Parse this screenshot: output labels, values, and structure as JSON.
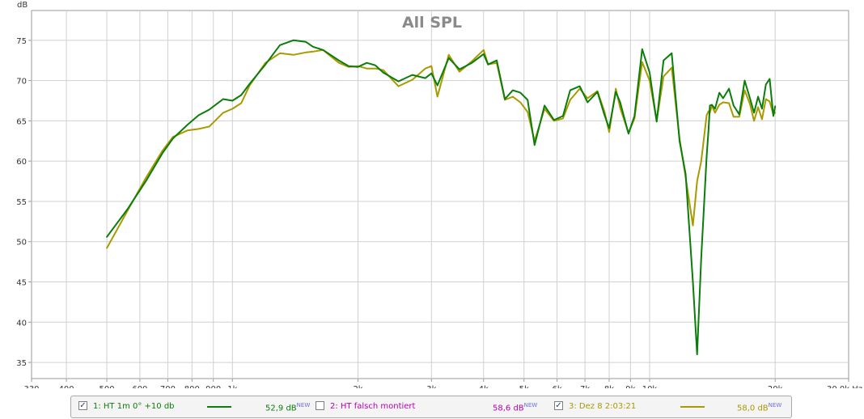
{
  "chart_data": {
    "type": "line",
    "title": "All SPL",
    "ylabel": "dB",
    "xunit": "Hz",
    "xscale": "log",
    "xlim": [
      330,
      30000
    ],
    "ylim": [
      33,
      78.7
    ],
    "x_ticks": [
      330,
      400,
      500,
      600,
      700,
      800,
      900,
      1000,
      2000,
      3000,
      4000,
      5000,
      6000,
      7000,
      8000,
      9000,
      10000,
      20000,
      30000
    ],
    "x_tick_labels": [
      "330",
      "400",
      "500",
      "600",
      "700",
      "800",
      "900",
      "1k",
      "2k",
      "3k",
      "4k",
      "5k",
      "6k",
      "7k",
      "8k",
      "9k",
      "10k",
      "20k",
      "30,0k Hz"
    ],
    "y_ticks": [
      35,
      40,
      45,
      50,
      55,
      60,
      65,
      70,
      75
    ],
    "grid": true,
    "series": [
      {
        "name": "1: HT 1m 0° +10 db",
        "color": "#0a7d0a",
        "x": [
          500,
          560,
          620,
          680,
          720,
          780,
          830,
          880,
          950,
          1000,
          1050,
          1100,
          1200,
          1300,
          1400,
          1500,
          1560,
          1650,
          1800,
          1900,
          2000,
          2100,
          2200,
          2300,
          2500,
          2700,
          2900,
          3000,
          3100,
          3300,
          3500,
          3750,
          4000,
          4100,
          4300,
          4500,
          4700,
          4900,
          5100,
          5300,
          5600,
          5900,
          6200,
          6450,
          6800,
          7100,
          7500,
          7800,
          8000,
          8300,
          8500,
          8900,
          9200,
          9600,
          10000,
          10400,
          10800,
          11300,
          11800,
          12200,
          12700,
          13000,
          13300,
          13700,
          13850,
          13950,
          14100,
          14350,
          14700,
          15000,
          15500,
          15900,
          16400,
          16900,
          17400,
          17800,
          18200,
          18600,
          19000,
          19400,
          19800,
          20000
        ],
        "y": [
          50.6,
          54.0,
          57.5,
          61.0,
          62.8,
          64.5,
          65.7,
          66.4,
          67.7,
          67.5,
          68.2,
          69.6,
          72.0,
          74.4,
          75.0,
          74.8,
          74.2,
          73.8,
          72.5,
          71.8,
          71.7,
          72.2,
          71.9,
          71.0,
          69.9,
          70.7,
          70.3,
          70.9,
          69.4,
          72.8,
          71.4,
          72.2,
          73.3,
          72.0,
          72.5,
          67.7,
          68.8,
          68.5,
          67.6,
          62.0,
          66.9,
          65.1,
          65.6,
          68.8,
          69.3,
          67.3,
          68.6,
          65.7,
          64.1,
          68.6,
          67.3,
          63.4,
          65.6,
          73.9,
          71.0,
          64.9,
          72.5,
          73.4,
          62.5,
          58.4,
          45.0,
          36.0,
          48.0,
          60.6,
          64.0,
          66.9,
          67.0,
          66.5,
          68.5,
          67.8,
          69.0,
          66.9,
          65.8,
          70.0,
          67.8,
          66.0,
          68.0,
          66.5,
          69.5,
          70.2,
          65.6,
          66.8
        ]
      },
      {
        "name": "2: HT falsch montiert",
        "color": "#b400b4",
        "x": [],
        "y": []
      },
      {
        "name": "3: Dez 8 2:03:21",
        "color": "#a89a00",
        "x": [
          500,
          560,
          620,
          680,
          720,
          780,
          830,
          880,
          950,
          1000,
          1050,
          1100,
          1200,
          1300,
          1400,
          1500,
          1560,
          1650,
          1800,
          1900,
          2000,
          2100,
          2200,
          2300,
          2500,
          2700,
          2900,
          3000,
          3100,
          3300,
          3500,
          3750,
          4000,
          4100,
          4300,
          4500,
          4700,
          4900,
          5100,
          5300,
          5600,
          5900,
          6200,
          6450,
          6800,
          7100,
          7500,
          7800,
          8000,
          8300,
          8500,
          8900,
          9200,
          9600,
          10000,
          10400,
          10800,
          11300,
          11800,
          12200,
          12700,
          13000,
          13300,
          13700,
          13850,
          13950,
          14100,
          14350,
          14700,
          15000,
          15500,
          15900,
          16400,
          16900,
          17400,
          17800,
          18200,
          18600,
          19000,
          19400,
          19800,
          20000
        ],
        "y": [
          49.2,
          53.8,
          57.9,
          61.3,
          63.0,
          63.8,
          64.0,
          64.3,
          66.0,
          66.5,
          67.2,
          69.4,
          72.2,
          73.4,
          73.2,
          73.5,
          73.6,
          73.8,
          72.2,
          71.7,
          71.8,
          71.5,
          71.5,
          71.3,
          69.3,
          70.1,
          71.5,
          71.8,
          68.0,
          73.2,
          71.1,
          72.4,
          73.8,
          72.0,
          72.2,
          67.6,
          68.0,
          67.3,
          66.1,
          62.5,
          66.5,
          65.0,
          65.3,
          67.6,
          69.0,
          67.8,
          68.7,
          66.1,
          63.6,
          69.0,
          66.6,
          63.5,
          65.3,
          72.3,
          70.0,
          65.0,
          70.5,
          71.6,
          62.8,
          58.0,
          52.0,
          57.5,
          60.0,
          65.7,
          66.2,
          66.0,
          66.9,
          66.0,
          67.0,
          67.3,
          67.2,
          65.5,
          65.5,
          68.8,
          67.1,
          65.0,
          66.7,
          65.2,
          67.7,
          67.4,
          65.8,
          66.0
        ]
      }
    ],
    "legend": [
      {
        "checked": true,
        "label": "1: HT 1m 0° +10 db",
        "value": "52,9 dB",
        "badge": "NEW",
        "text_color": "#0a7d0a",
        "line_color": "#0a7d0a",
        "has_swatch": true
      },
      {
        "checked": false,
        "label": "2: HT falsch montiert",
        "value": "58,6 dB",
        "badge": "NEW",
        "text_color": "#b400b4",
        "line_color": "#b400b4",
        "has_swatch": false
      },
      {
        "checked": true,
        "label": "3: Dez 8 2:03:21",
        "value": "58,0 dB",
        "badge": "NEW",
        "text_color": "#a89a00",
        "line_color": "#a89a00",
        "has_swatch": true
      }
    ]
  }
}
